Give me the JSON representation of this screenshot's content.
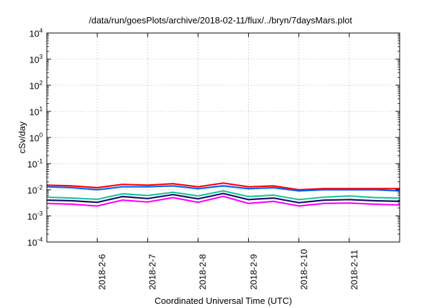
{
  "chart_data": {
    "type": "line",
    "title": "/data/run/goesPlots/archive/2018-02-11/flux/../bryn/7daysMars.plot",
    "xlabel": "Coordinated Universal Time (UTC)",
    "ylabel": "cSv/day",
    "y_scale": "log",
    "ylim": [
      0.0001,
      10000
    ],
    "y_ticks": [
      {
        "value": 0.0001,
        "base": "10",
        "exp": "-4"
      },
      {
        "value": 0.001,
        "base": "10",
        "exp": "-3"
      },
      {
        "value": 0.01,
        "base": "10",
        "exp": "-2"
      },
      {
        "value": 0.1,
        "base": "10",
        "exp": "-1"
      },
      {
        "value": 1,
        "base": "10",
        "exp": "0"
      },
      {
        "value": 10,
        "base": "10",
        "exp": "1"
      },
      {
        "value": 100,
        "base": "10",
        "exp": "2"
      },
      {
        "value": 1000,
        "base": "10",
        "exp": "3"
      },
      {
        "value": 10000,
        "base": "10",
        "exp": "4"
      }
    ],
    "xlim": [
      "2018-02-05",
      "2018-02-12"
    ],
    "x_ticks": [
      "2018-2-6",
      "2018-2-7",
      "2018-2-8",
      "2018-2-9",
      "2018-2-10",
      "2018-2-11"
    ],
    "x_tick_dates": [
      "2018-02-06",
      "2018-02-07",
      "2018-02-08",
      "2018-02-09",
      "2018-02-10",
      "2018-02-11"
    ],
    "grid": true,
    "legend": "none",
    "sample_times": [
      "2018-02-05T00:00",
      "2018-02-05T12:00",
      "2018-02-06T00:00",
      "2018-02-06T12:00",
      "2018-02-07T00:00",
      "2018-02-07T12:00",
      "2018-02-08T00:00",
      "2018-02-08T12:00",
      "2018-02-09T00:00",
      "2018-02-09T12:00",
      "2018-02-10T00:00",
      "2018-02-10T12:00",
      "2018-02-11T00:00",
      "2018-02-11T12:00",
      "2018-02-12T00:00"
    ],
    "series": [
      {
        "color": "#ff0000",
        "values": [
          0.015,
          0.014,
          0.012,
          0.016,
          0.015,
          0.017,
          0.013,
          0.018,
          0.013,
          0.014,
          0.01,
          0.011,
          0.011,
          0.011,
          0.011
        ]
      },
      {
        "color": "#0060ff",
        "values": [
          0.013,
          0.012,
          0.01,
          0.013,
          0.013,
          0.014,
          0.011,
          0.014,
          0.011,
          0.012,
          0.009,
          0.01,
          0.01,
          0.01,
          0.009
        ]
      },
      {
        "color": "#20c0a0",
        "values": [
          0.0052,
          0.0048,
          0.0043,
          0.007,
          0.006,
          0.008,
          0.0058,
          0.009,
          0.0055,
          0.0062,
          0.0042,
          0.0052,
          0.0058,
          0.005,
          0.0048
        ]
      },
      {
        "color": "#101060",
        "values": [
          0.004,
          0.0038,
          0.0033,
          0.0055,
          0.0046,
          0.0065,
          0.0045,
          0.0072,
          0.0042,
          0.0048,
          0.0032,
          0.004,
          0.0042,
          0.0038,
          0.0036
        ]
      },
      {
        "color": "#ff00ff",
        "values": [
          0.003,
          0.0028,
          0.0024,
          0.004,
          0.0034,
          0.005,
          0.0033,
          0.0056,
          0.003,
          0.0036,
          0.0024,
          0.003,
          0.0031,
          0.0028,
          0.0026
        ]
      }
    ]
  }
}
